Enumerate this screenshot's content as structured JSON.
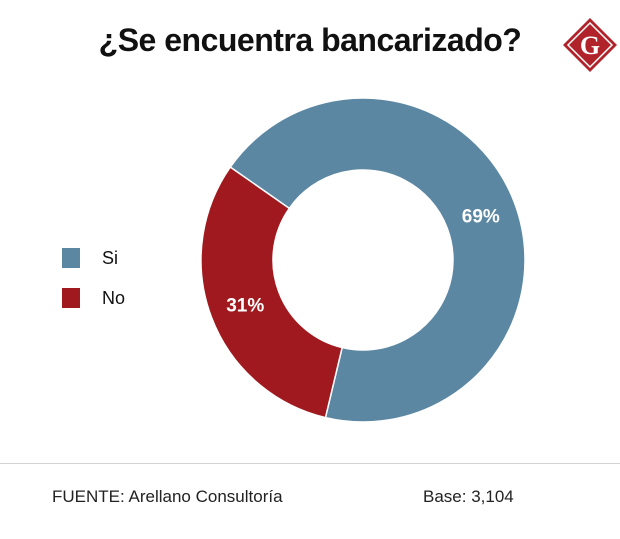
{
  "title": "¿Se encuentra bancarizado?",
  "logo": {
    "letter": "G",
    "color": "#b0232a"
  },
  "chart_data": {
    "type": "pie",
    "donut": true,
    "title": "¿Se encuentra bancarizado?",
    "legend_position": "left",
    "slices": [
      {
        "label": "Si",
        "value": 69,
        "display": "69%",
        "color": "#5b87a2"
      },
      {
        "label": "No",
        "value": 31,
        "display": "31%",
        "color": "#a0191e"
      }
    ]
  },
  "footer": {
    "source": "FUENTE: Arellano Consultoría",
    "base": "Base: 3,104"
  }
}
